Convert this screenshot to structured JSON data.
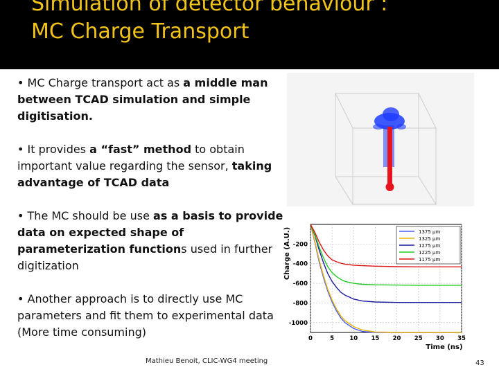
{
  "slide": {
    "title_line1": "Simulation of detector behaviour :",
    "title_line2": "MC Charge Transport",
    "footer": "Mathieu Benoit, CLIC-WG4 meeting",
    "page_number": "43"
  },
  "bullets": [
    {
      "parts": [
        {
          "t": "• MC Charge transport act as ",
          "b": false
        },
        {
          "t": "a middle man between TCAD simulation and simple digitisation.",
          "b": true
        }
      ]
    },
    {
      "parts": [
        {
          "t": "• It provides ",
          "b": false
        },
        {
          "t": "a “fast” method",
          "b": true
        },
        {
          "t": " to obtain important value regarding the sensor, ",
          "b": false
        },
        {
          "t": " taking advantage of TCAD data",
          "b": true
        }
      ]
    },
    {
      "parts": [
        {
          "t": "• The MC should be use ",
          "b": false
        },
        {
          "t": "as a basis to provide data on expected shape of parameterization function",
          "b": true
        },
        {
          "t": "s used in further digitization",
          "b": false
        }
      ]
    },
    {
      "parts": [
        {
          "t": "• Another approach is to directly use MC parameters and fit them to experimental data (More time consuming)",
          "b": false
        }
      ]
    }
  ],
  "colors": {
    "title": "#f2c417",
    "header_bg": "#000000",
    "electron_drift": "#1f3cff",
    "hole_drift": "#e8141e"
  },
  "chart_data": {
    "type": "line",
    "xlabel": "Time (ns)",
    "ylabel": "Charge (A.U.)",
    "xlim": [
      0,
      35
    ],
    "ylim": [
      -1100,
      0
    ],
    "xticks": [
      "0",
      "5",
      "10",
      "15",
      "20",
      "25",
      "30",
      "35"
    ],
    "yticks": [
      "-200",
      "-400",
      "-600",
      "-800",
      "-1000"
    ],
    "legend_position": "top-right",
    "x": [
      0,
      1,
      2,
      3,
      4,
      5,
      6,
      7,
      8,
      10,
      12,
      15,
      20,
      25,
      30,
      35
    ],
    "series": [
      {
        "name": "1375 µm",
        "color": "#4a5cff",
        "values": [
          0,
          -180,
          -380,
          -540,
          -680,
          -790,
          -880,
          -950,
          -1000,
          -1060,
          -1090,
          -1100,
          -1100,
          -1100,
          -1100,
          -1100
        ]
      },
      {
        "name": "1325 µm",
        "color": "#e8b400",
        "values": [
          0,
          -170,
          -360,
          -520,
          -660,
          -770,
          -860,
          -930,
          -980,
          -1040,
          -1075,
          -1095,
          -1100,
          -1100,
          -1100,
          -1100
        ]
      },
      {
        "name": "1275 µm",
        "color": "#1a1aa0",
        "values": [
          0,
          -110,
          -260,
          -390,
          -500,
          -580,
          -640,
          -690,
          -720,
          -760,
          -780,
          -790,
          -795,
          -795,
          -795,
          -795
        ]
      },
      {
        "name": "1225 µm",
        "color": "#22cc22",
        "values": [
          0,
          -100,
          -230,
          -340,
          -430,
          -490,
          -530,
          -560,
          -580,
          -600,
          -610,
          -615,
          -618,
          -620,
          -620,
          -620
        ]
      },
      {
        "name": "1175 µm",
        "color": "#dd1111",
        "values": [
          0,
          -80,
          -180,
          -260,
          -320,
          -360,
          -380,
          -395,
          -405,
          -415,
          -420,
          -425,
          -430,
          -432,
          -432,
          -432
        ]
      }
    ]
  }
}
